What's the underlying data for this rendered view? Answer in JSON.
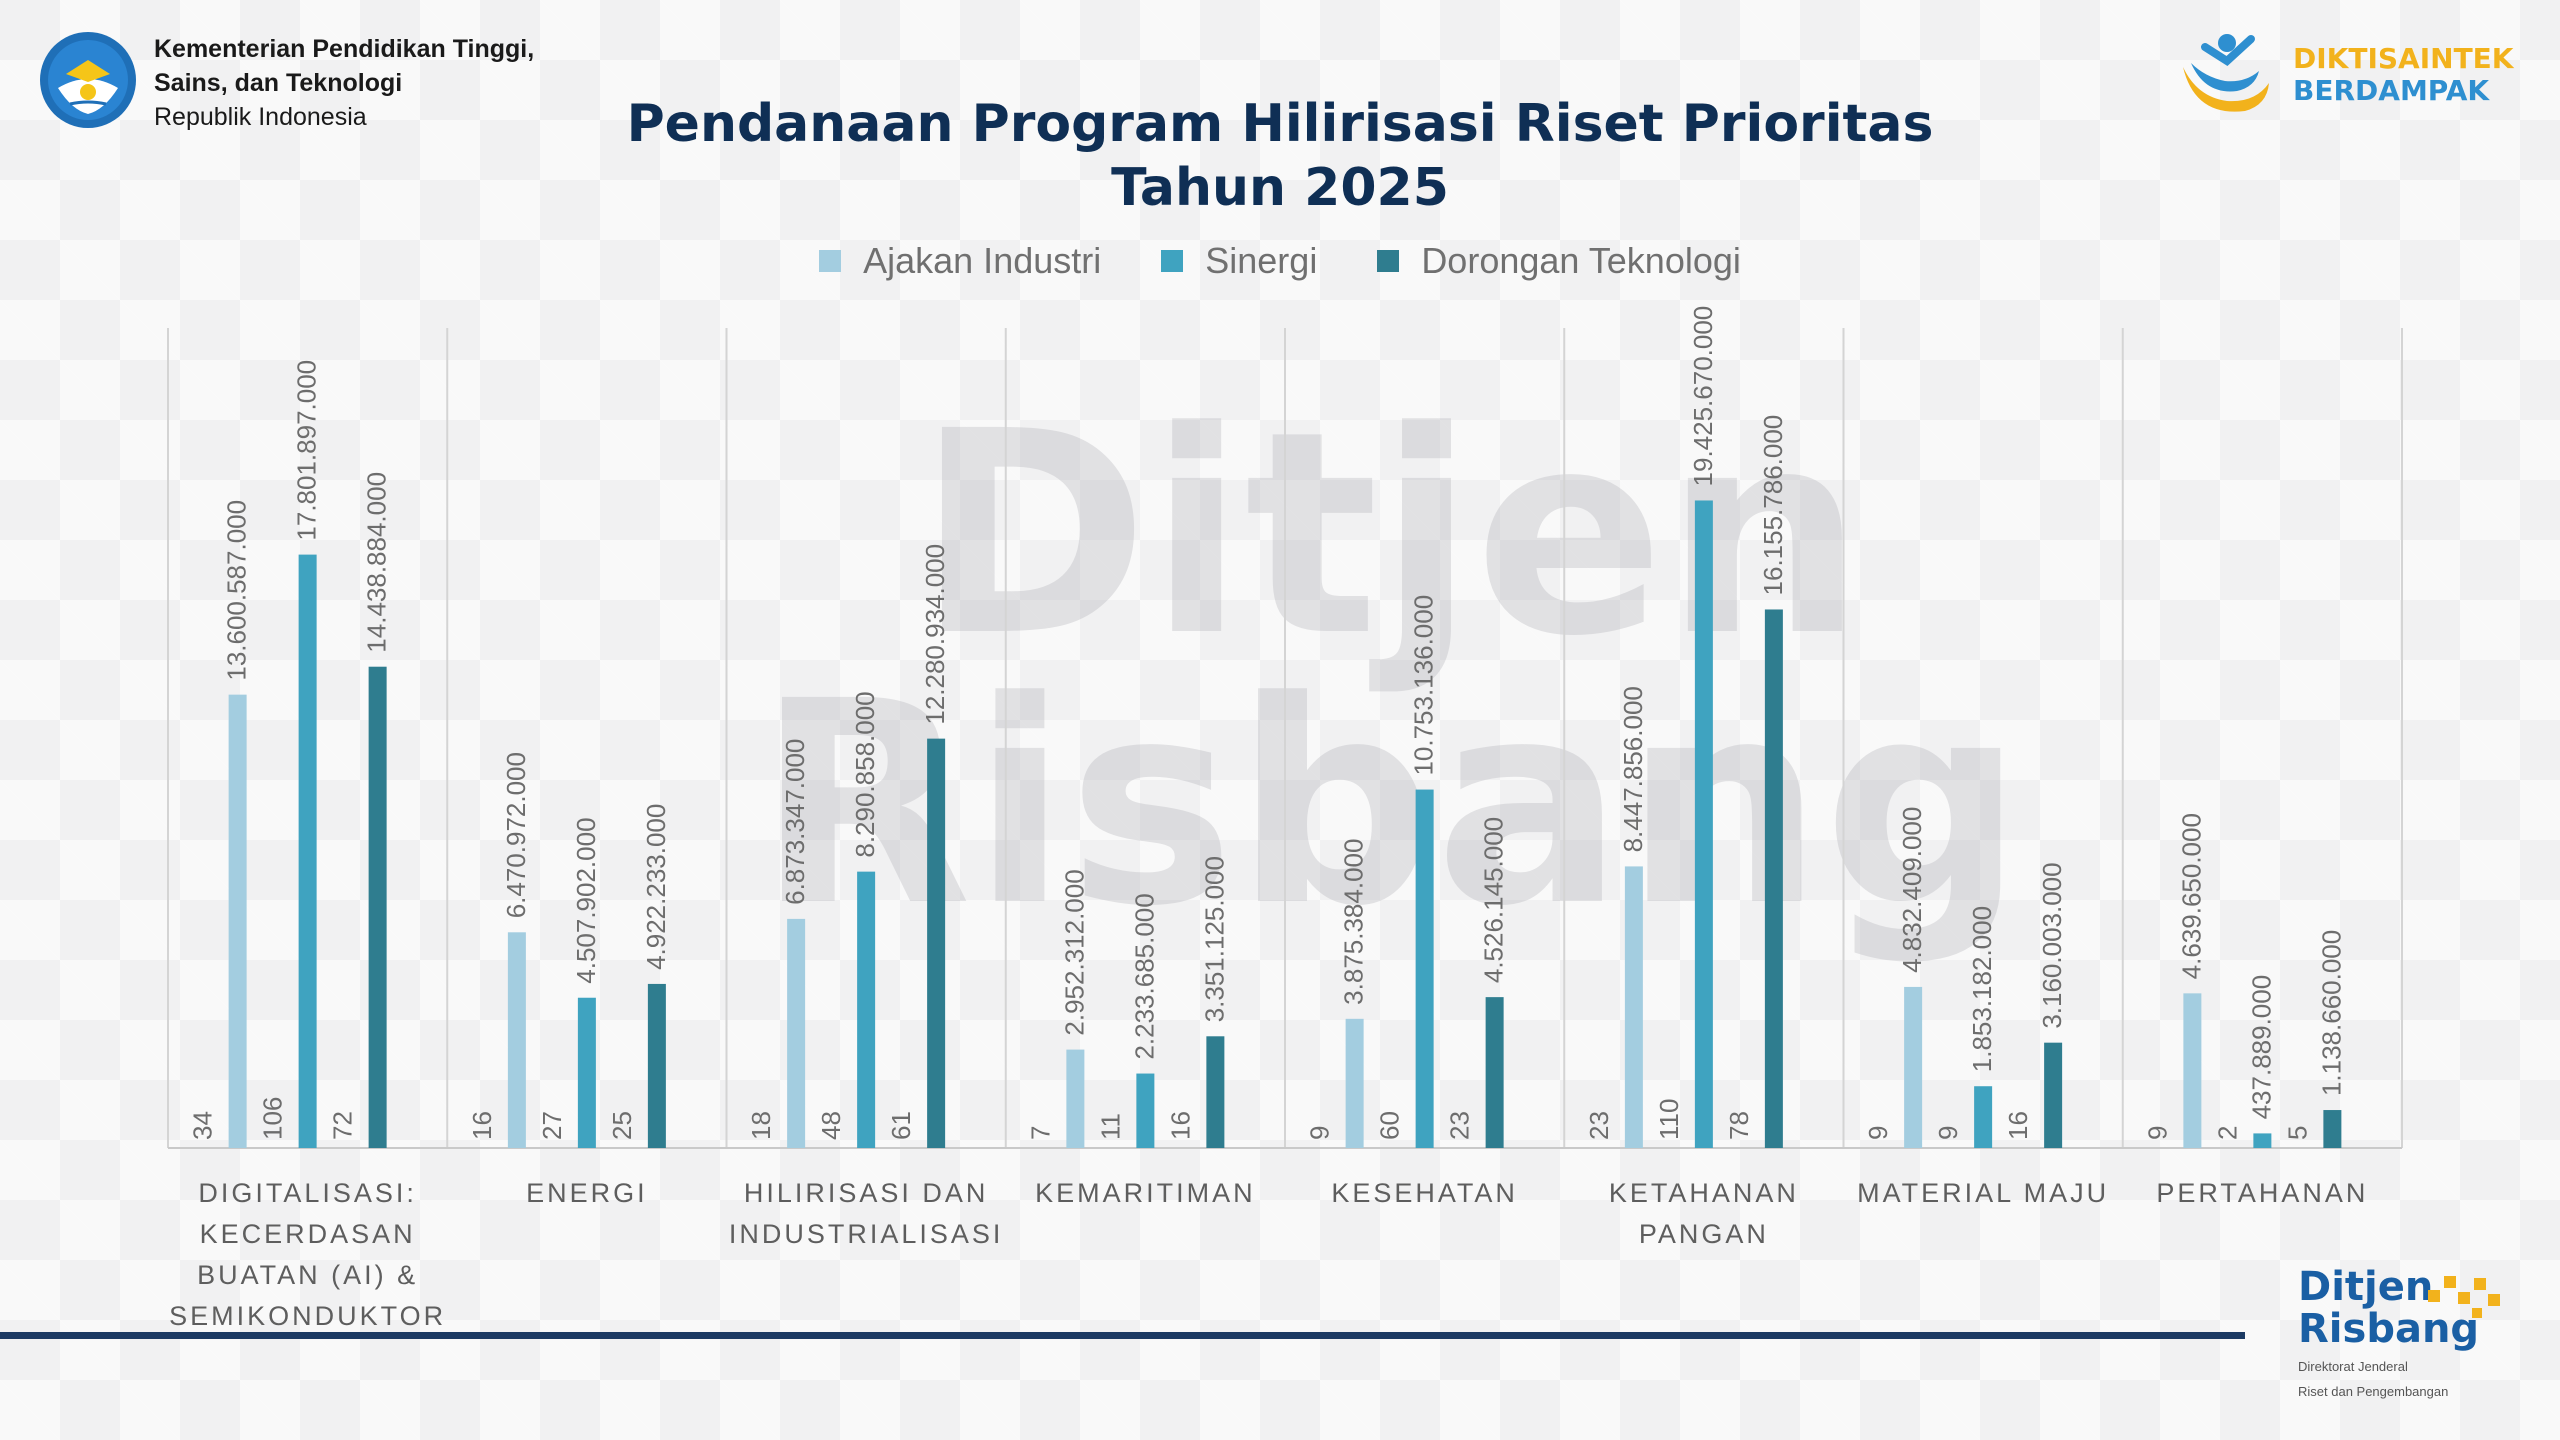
{
  "header": {
    "ministry_line1": "Kementerian Pendidikan Tinggi,",
    "ministry_line2": "Sains, dan Teknologi",
    "ministry_line3": "Republik Indonesia",
    "brand_line1": "DIKTISAINTEK",
    "brand_line2": "BERDAMPAK"
  },
  "watermark": {
    "line1": "Ditjen",
    "line2": "Risbang"
  },
  "footer": {
    "logo_line1": "Ditjen",
    "logo_line2": "Risbang",
    "logo_sub1": "Direktorat Jenderal",
    "logo_sub2": "Riset dan Pengembangan"
  },
  "colors": {
    "ajakan": "#a3cde0",
    "sinergi": "#3fa3c0",
    "dorongan": "#2f7d8f",
    "title": "#0f2f55",
    "brand_yellow": "#f2b21c",
    "brand_blue": "#2e8fd0"
  },
  "chart_data": {
    "type": "bar",
    "title_line1": "Pendanaan Program Hilirisasi Riset Prioritas",
    "title_line2": "Tahun 2025",
    "categories": [
      [
        "DIGITALISASI:",
        "KECERDASAN",
        "BUATAN (AI) &",
        "SEMIKONDUKTOR"
      ],
      [
        "ENERGI"
      ],
      [
        "HILIRISASI DAN",
        "INDUSTRIALISASI"
      ],
      [
        "KEMARITIMAN"
      ],
      [
        "KESEHATAN"
      ],
      [
        "KETAHANAN",
        "PANGAN"
      ],
      [
        "MATERIAL MAJU"
      ],
      [
        "PERTAHANAN"
      ]
    ],
    "series": [
      {
        "name": "Ajakan Industri",
        "values": [
          13600587000,
          6470972000,
          6873347000,
          2952312000,
          3875384000,
          8447856000,
          4832409000,
          4639650000
        ],
        "labels": [
          "13.600.587.000",
          "6.470.972.000",
          "6.873.347.000",
          "2.952.312.000",
          "3.875.384.000",
          "8.447.856.000",
          "4.832.409.000",
          "4.639.650.000"
        ],
        "counts": [
          "34",
          "16",
          "18",
          "7",
          "9",
          "23",
          "9",
          "9"
        ]
      },
      {
        "name": "Sinergi",
        "values": [
          17801897000,
          4507902000,
          8290858000,
          2233685000,
          10753136000,
          19425670000,
          1853182000,
          437889000
        ],
        "labels": [
          "17.801.897.000",
          "4.507.902.000",
          "8.290.858.000",
          "2.233.685.000",
          "10.753.136.000",
          "19.425.670.000",
          "1.853.182.000",
          "437.889.000"
        ],
        "counts": [
          "106",
          "27",
          "48",
          "11",
          "60",
          "110",
          "9",
          "2"
        ]
      },
      {
        "name": "Dorongan Teknologi",
        "values": [
          14438884000,
          4922233000,
          12280934000,
          3351125000,
          4526145000,
          16155786000,
          3160003000,
          1138660000
        ],
        "labels": [
          "14.438.884.000",
          "4.922.233.000",
          "12.280.934.000",
          "3.351.125.000",
          "4.526.145.000",
          "16.155.786.000",
          "3.160.003.000",
          "1.138.660.000"
        ],
        "counts": [
          "72",
          "25",
          "61",
          "16",
          "23",
          "78",
          "16",
          "5"
        ]
      }
    ],
    "ylim": [
      0,
      24600000000
    ],
    "grid": false,
    "legend_position": "top-center"
  }
}
